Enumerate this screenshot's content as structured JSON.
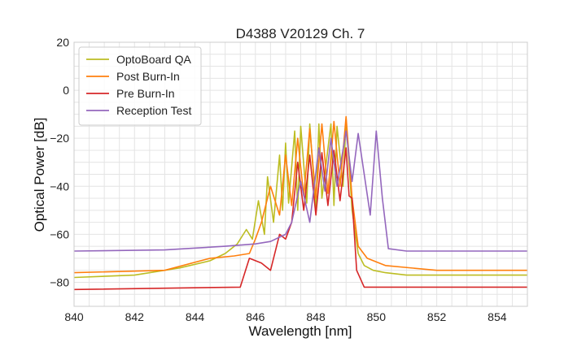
{
  "chart_data": {
    "type": "line",
    "title": "D4388 V20129 Ch. 7",
    "xlabel": "Wavelength [nm]",
    "ylabel": "Optical Power [dB]",
    "xlim": [
      840,
      855
    ],
    "ylim": [
      -90,
      20
    ],
    "xticks": [
      840,
      842,
      844,
      846,
      848,
      850,
      852,
      854
    ],
    "yticks": [
      20,
      0,
      -20,
      -40,
      -60,
      -80
    ],
    "grid": true,
    "legend_position": "top-left",
    "series": [
      {
        "name": "OptoBoard QA",
        "color": "#bcbd22",
        "x": [
          840,
          842,
          843.5,
          844.5,
          845,
          845.4,
          845.7,
          845.9,
          846.1,
          846.3,
          846.4,
          846.6,
          846.8,
          846.9,
          847.0,
          847.1,
          847.3,
          847.4,
          847.5,
          847.7,
          847.8,
          848.0,
          848.1,
          848.2,
          848.5,
          848.6,
          848.7,
          848.9,
          849.0,
          849.2,
          849.4,
          849.6,
          849.9,
          850.3,
          851,
          853,
          855
        ],
        "y": [
          -78,
          -77,
          -74,
          -71,
          -68,
          -64,
          -58,
          -62,
          -46,
          -60,
          -36,
          -55,
          -27,
          -50,
          -22,
          -47,
          -17,
          -50,
          -15,
          -47,
          -14,
          -50,
          -14,
          -45,
          -14,
          -48,
          -15,
          -40,
          -12,
          -50,
          -68,
          -73,
          -75,
          -76,
          -77,
          -77,
          -77
        ]
      },
      {
        "name": "Post Burn-In",
        "color": "#ff7f0e",
        "x": [
          840,
          843,
          844.5,
          845.3,
          845.8,
          846.0,
          846.2,
          846.5,
          846.8,
          847.0,
          847.2,
          847.4,
          847.6,
          847.8,
          848.0,
          848.2,
          848.4,
          848.6,
          848.8,
          849.0,
          849.2,
          849.4,
          849.7,
          850.3,
          852,
          855
        ],
        "y": [
          -76,
          -75,
          -70,
          -69,
          -68,
          -62,
          -55,
          -40,
          -52,
          -27,
          -48,
          -20,
          -44,
          -16,
          -45,
          -14,
          -43,
          -13,
          -40,
          -11,
          -45,
          -65,
          -70,
          -73,
          -75,
          -75
        ]
      },
      {
        "name": "Pre Burn-In",
        "color": "#d62728",
        "x": [
          840,
          845.5,
          845.8,
          846.2,
          846.5,
          846.8,
          847.0,
          847.2,
          847.4,
          847.6,
          847.8,
          848.0,
          848.2,
          848.4,
          848.6,
          848.8,
          849.0,
          849.1,
          849.2,
          849.35,
          849.6,
          852,
          855
        ],
        "y": [
          -83,
          -82,
          -70,
          -72,
          -75,
          -60,
          -62,
          -55,
          -30,
          -50,
          -27,
          -52,
          -26,
          -48,
          -25,
          -46,
          -24,
          -44,
          -45,
          -75,
          -82,
          -82,
          -82
        ]
      },
      {
        "name": "Reception Test",
        "color": "#9467bd",
        "x": [
          840,
          843,
          845,
          846,
          846.5,
          847.0,
          847.2,
          847.5,
          847.8,
          848.1,
          848.3,
          848.5,
          848.7,
          849.0,
          849.2,
          849.4,
          849.6,
          849.8,
          850.0,
          850.2,
          850.4,
          851,
          853,
          855
        ],
        "y": [
          -67,
          -66.5,
          -65,
          -64,
          -63,
          -60,
          -55,
          -38,
          -55,
          -24,
          -42,
          -20,
          -40,
          -17,
          -38,
          -18,
          -35,
          -52,
          -17,
          -45,
          -66,
          -67,
          -67,
          -67
        ]
      }
    ]
  }
}
